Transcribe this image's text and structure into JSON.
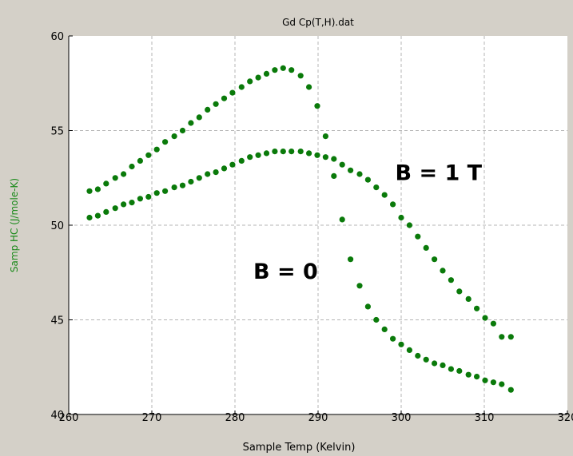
{
  "chart_data": {
    "type": "scatter",
    "title": "Gd Cp(T,H).dat",
    "xlabel": "Sample Temp (Kelvin)",
    "ylabel": "Samp HC (J/mole-K)",
    "xlim": [
      260,
      320
    ],
    "ylim": [
      40,
      60
    ],
    "xticks": [
      "260",
      "270",
      "280",
      "290",
      "300",
      "310",
      "320"
    ],
    "yticks": [
      "40",
      "45",
      "50",
      "55",
      "60"
    ],
    "grid": true,
    "annotations": [
      {
        "text": "B = 1 T",
        "x": 304.5,
        "y": 52.8
      },
      {
        "text": "B = 0",
        "x": 286.1,
        "y": 47.6
      }
    ],
    "series": [
      {
        "x": [
          262.5,
          263.5,
          264.5,
          265.6,
          266.6,
          267.6,
          268.6,
          269.6,
          270.6,
          271.6,
          272.7,
          273.7,
          274.7,
          275.7,
          276.7,
          277.7,
          278.7,
          279.7,
          280.8,
          281.8,
          282.8,
          283.8,
          284.8,
          285.8,
          286.8,
          287.9,
          288.9,
          289.9,
          290.9,
          291.9,
          292.9,
          293.9,
          295.0,
          296.0,
          297.0,
          298.0,
          299.0,
          300.0,
          301.0,
          302.0,
          303.0,
          304.0,
          305.0,
          306.0,
          307.0,
          308.1,
          309.1,
          310.1,
          311.1,
          312.1,
          313.2
        ],
        "y": [
          51.8,
          51.9,
          52.2,
          52.5,
          52.7,
          53.1,
          53.4,
          53.7,
          54.0,
          54.4,
          54.7,
          55.0,
          55.4,
          55.7,
          56.1,
          56.4,
          56.7,
          57.0,
          57.3,
          57.6,
          57.8,
          58.0,
          58.2,
          58.3,
          58.2,
          57.9,
          57.3,
          56.3,
          54.7,
          52.6,
          50.3,
          48.2,
          46.8,
          45.7,
          45.0,
          44.5,
          44.0,
          43.7,
          43.4,
          43.1,
          42.9,
          42.7,
          42.6,
          42.4,
          42.3,
          42.1,
          42.0,
          41.8,
          41.7,
          41.6,
          41.3
        ]
      },
      {
        "x": [
          262.5,
          263.5,
          264.5,
          265.6,
          266.6,
          267.6,
          268.6,
          269.6,
          270.6,
          271.6,
          272.7,
          273.7,
          274.7,
          275.7,
          276.7,
          277.7,
          278.7,
          279.7,
          280.8,
          281.8,
          282.8,
          283.8,
          284.8,
          285.8,
          286.8,
          287.9,
          288.9,
          289.9,
          290.9,
          291.9,
          292.9,
          293.9,
          295.0,
          296.0,
          297.0,
          298.0,
          299.0,
          300.0,
          301.0,
          302.0,
          303.0,
          304.0,
          305.0,
          306.0,
          307.0,
          308.1,
          309.1,
          310.1,
          311.1,
          312.1,
          313.2
        ],
        "y": [
          50.4,
          50.5,
          50.7,
          50.9,
          51.1,
          51.2,
          51.4,
          51.5,
          51.7,
          51.8,
          52.0,
          52.1,
          52.3,
          52.5,
          52.7,
          52.8,
          53.0,
          53.2,
          53.4,
          53.6,
          53.7,
          53.8,
          53.9,
          53.9,
          53.9,
          53.9,
          53.8,
          53.7,
          53.6,
          53.5,
          53.2,
          52.9,
          52.7,
          52.4,
          52.0,
          51.6,
          51.1,
          50.4,
          50.0,
          49.4,
          48.8,
          48.2,
          47.6,
          47.1,
          46.5,
          46.1,
          45.6,
          45.1,
          44.8,
          44.1,
          44.1
        ]
      }
    ]
  },
  "colors": {
    "marker": "#0a7a0a",
    "ylabel": "#1a8a1a",
    "plot_bg": "#ffffff",
    "frame_bg": "#d4d0c8",
    "grid": "#b4b4b4"
  }
}
